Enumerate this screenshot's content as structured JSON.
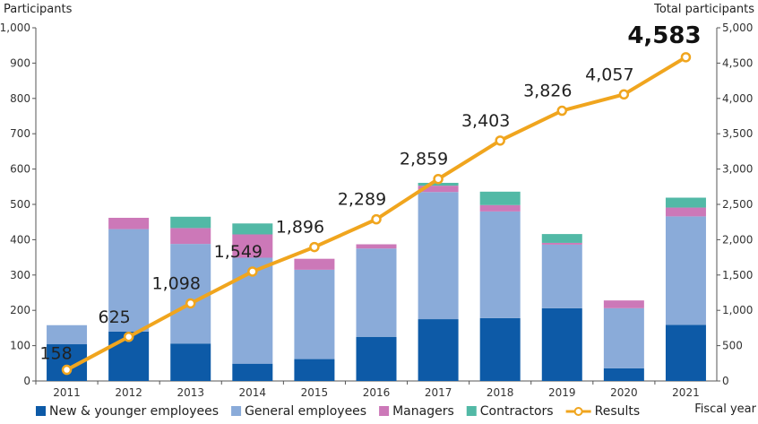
{
  "chart_data": {
    "type": "bar",
    "stacked": true,
    "left_axis_title": "Participants",
    "right_axis_title": "Total participants",
    "xlabel": "Fiscal year",
    "categories": [
      "2011",
      "2012",
      "2013",
      "2014",
      "2015",
      "2016",
      "2017",
      "2018",
      "2019",
      "2020",
      "2021"
    ],
    "ylim_left": [
      0,
      1000
    ],
    "ylim_right": [
      0,
      5000
    ],
    "yticks_left": [
      "0",
      "100",
      "200",
      "300",
      "400",
      "500",
      "600",
      "700",
      "800",
      "900",
      "1,000"
    ],
    "yticks_right": [
      "0",
      "500",
      "1,000",
      "1,500",
      "2,000",
      "2,500",
      "3,000",
      "3,500",
      "4,000",
      "4,500",
      "5,000"
    ],
    "series": [
      {
        "name": "New & younger employees",
        "color": "#0d5aa7",
        "values": [
          104,
          140,
          106,
          49,
          62,
          125,
          175,
          178,
          206,
          36,
          159
        ]
      },
      {
        "name": "General employees",
        "color": "#8aabd9",
        "values": [
          54,
          290,
          282,
          300,
          253,
          250,
          360,
          302,
          180,
          170,
          307
        ]
      },
      {
        "name": "Managers",
        "color": "#cc78b8",
        "values": [
          0,
          32,
          45,
          66,
          31,
          12,
          18,
          18,
          5,
          22,
          25
        ]
      },
      {
        "name": "Contractors",
        "color": "#52b9a6",
        "values": [
          0,
          0,
          32,
          31,
          0,
          0,
          8,
          38,
          25,
          0,
          28
        ]
      }
    ],
    "line_series": {
      "name": "Results",
      "color": "#f0a51e",
      "axis": "right",
      "values": [
        158,
        625,
        1098,
        1549,
        1896,
        2289,
        2859,
        3403,
        3826,
        4057,
        4583
      ],
      "labels": [
        "158",
        "625",
        "1,098",
        "1,549",
        "1,896",
        "2,289",
        "2,859",
        "3,403",
        "3,826",
        "4,057",
        "4,583"
      ]
    },
    "legend_position": "bottom"
  }
}
